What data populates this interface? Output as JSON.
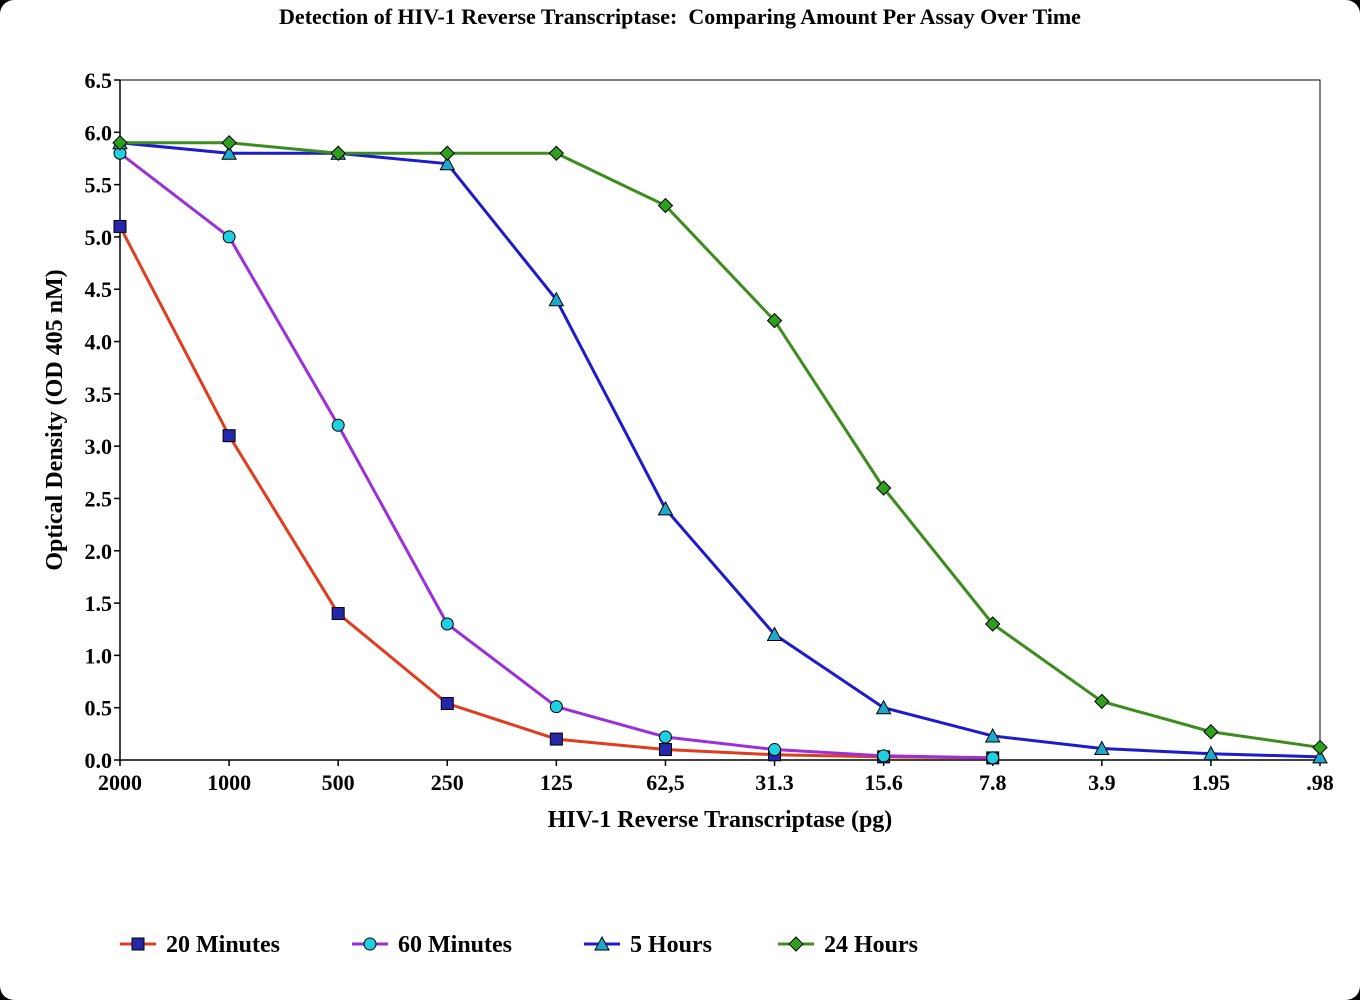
{
  "chart_data": {
    "type": "line",
    "title": "Detection of HIV-1 Reverse Transcriptase:  Comparing Amount Per Assay Over Time",
    "xlabel": "HIV-1 Reverse Transcriptase (pg)",
    "ylabel": "Optical Density (OD 405 nM)",
    "categories": [
      "2000",
      "1000",
      "500",
      "250",
      "125",
      "62,5",
      "31.3",
      "15.6",
      "7.8",
      "3.9",
      "1.95",
      ".98"
    ],
    "ylim": [
      0,
      6.5
    ],
    "yticks": [
      "0.0",
      "0.5",
      "1.0",
      "1.5",
      "2.0",
      "2.5",
      "3.0",
      "3.5",
      "4.0",
      "4.5",
      "5.0",
      "5.5",
      "6.0",
      "6.5"
    ],
    "grid": false,
    "legend_position": "bottom",
    "series": [
      {
        "name": "20 Minutes",
        "color": "#e03c1e",
        "marker": "square",
        "marker_color": "#2626a8",
        "values": [
          5.1,
          3.1,
          1.4,
          0.54,
          0.2,
          0.1,
          0.05,
          0.03,
          0.02,
          null,
          null,
          null
        ]
      },
      {
        "name": "60 Minutes",
        "color": "#9b30d9",
        "marker": "circle",
        "marker_color": "#1fd0e0",
        "values": [
          5.8,
          5.0,
          3.2,
          1.3,
          0.51,
          0.22,
          0.1,
          0.04,
          0.02,
          null,
          null,
          null
        ]
      },
      {
        "name": "5 Hours",
        "color": "#1c1ccc",
        "marker": "triangle",
        "marker_color": "#1fa8c8",
        "values": [
          5.9,
          5.8,
          5.8,
          5.7,
          4.4,
          2.4,
          1.2,
          0.5,
          0.23,
          0.11,
          0.06,
          0.03
        ]
      },
      {
        "name": "24 Hours",
        "color": "#3c8c1e",
        "marker": "diamond",
        "marker_color": "#2ea01e",
        "values": [
          5.9,
          5.9,
          5.8,
          5.8,
          5.8,
          5.3,
          4.2,
          2.6,
          1.3,
          0.56,
          0.27,
          0.12
        ]
      }
    ]
  }
}
